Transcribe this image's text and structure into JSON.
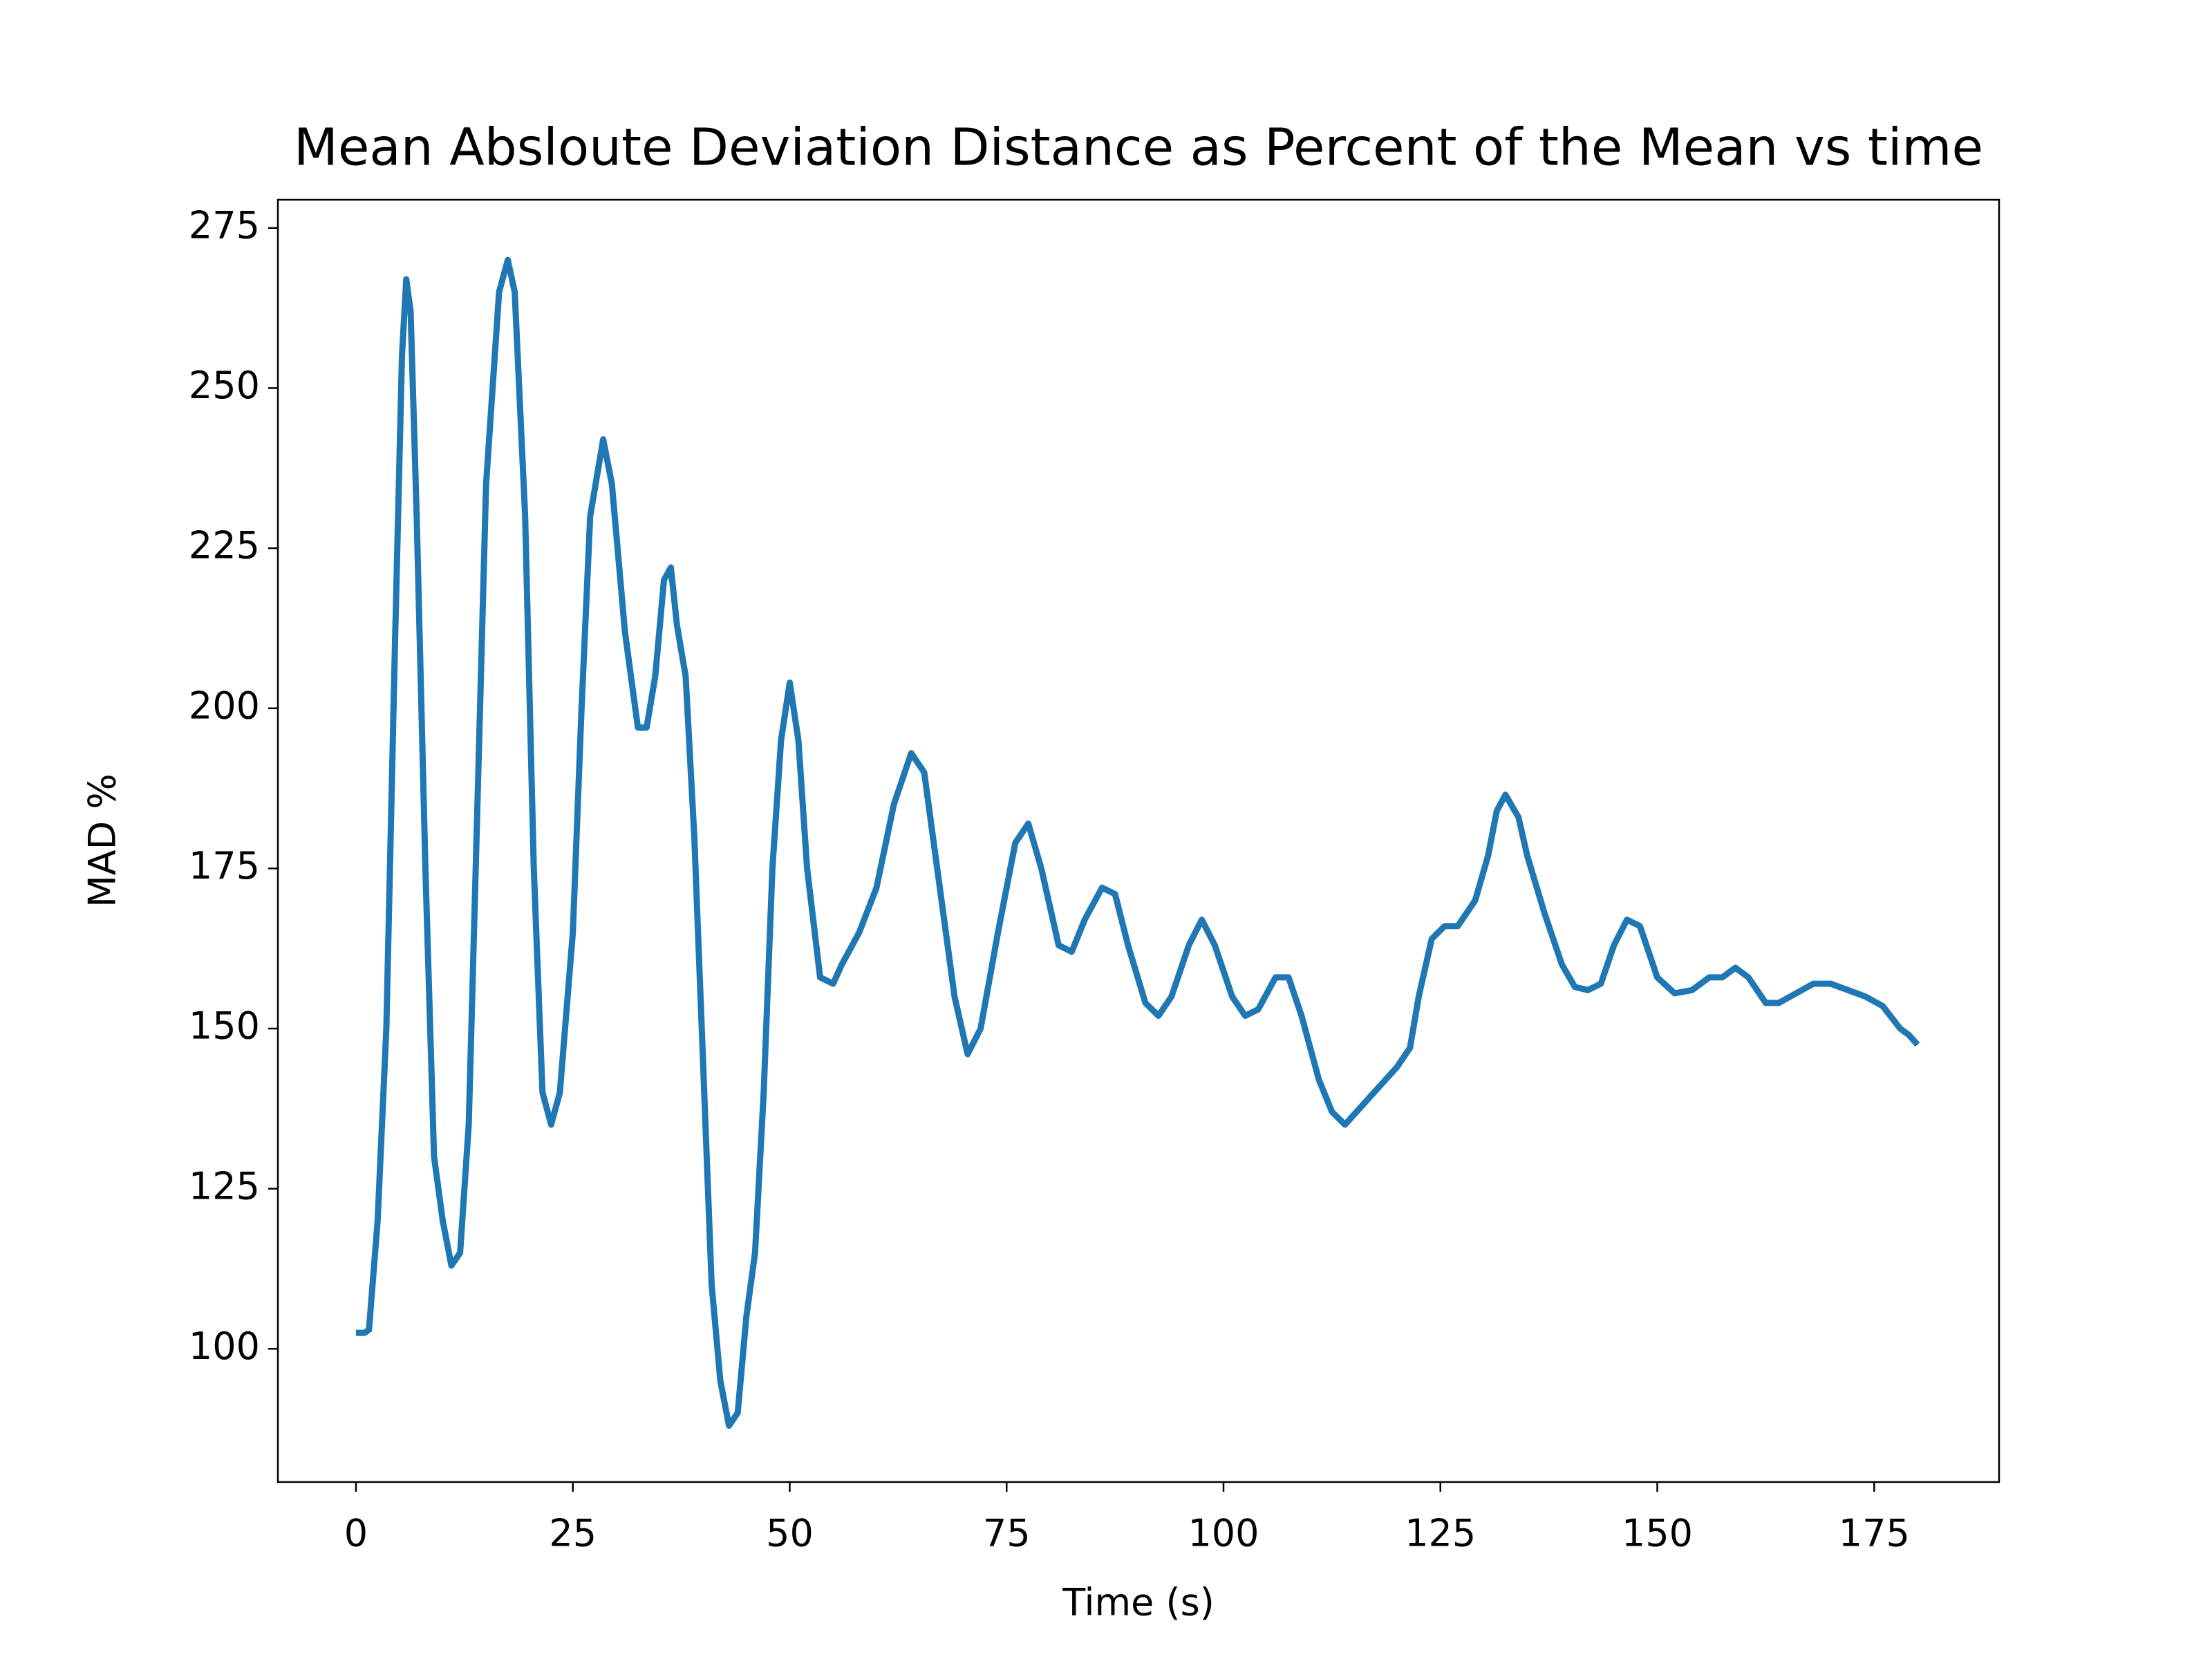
{
  "chart_data": {
    "type": "line",
    "title": "Mean Absloute Deviation Distance as Percent of the Mean vs time",
    "xlabel": "Time (s)",
    "ylabel": "MAD %",
    "x": [
      0,
      1,
      1.5,
      2.5,
      3.5,
      4.5,
      5.3,
      5.8,
      6.3,
      7,
      8,
      9,
      10,
      11,
      12,
      13,
      14,
      15,
      16.5,
      17.5,
      18.3,
      19.5,
      20.5,
      21.5,
      22.5,
      23.5,
      25,
      26,
      27,
      28.5,
      29.5,
      31,
      32.5,
      33.5,
      34.5,
      35.5,
      36.3,
      37,
      38,
      39,
      40,
      41,
      42,
      43,
      44,
      45,
      46,
      47,
      48,
      49,
      50,
      51,
      52,
      53.5,
      55,
      56,
      58,
      60,
      62,
      64,
      65.5,
      67,
      69,
      70.5,
      72,
      74,
      76,
      77.5,
      79,
      81,
      82.5,
      84,
      86,
      87.5,
      89,
      91,
      92.5,
      94,
      96,
      97.5,
      99,
      101,
      102.5,
      104,
      106,
      107.5,
      109,
      111,
      112.5,
      114,
      116,
      118,
      120,
      121.5,
      122.5,
      124,
      125.5,
      127,
      129,
      130.5,
      131.5,
      132.5,
      134,
      135,
      137,
      139,
      140.5,
      142,
      143.5,
      145,
      146.5,
      148,
      150,
      152,
      154,
      156,
      157.5,
      159,
      160.5,
      162.5,
      164,
      166,
      168,
      170,
      172,
      174,
      176,
      178,
      179,
      180
    ],
    "series": [
      {
        "name": "MAD",
        "color": "#1f77b4",
        "values": [
          102.5,
          102.5,
          103,
          120,
          150,
          210,
          255,
          267,
          262,
          230,
          175,
          130,
          120,
          113,
          115,
          135,
          185,
          235,
          265,
          270,
          265,
          230,
          175,
          140,
          135,
          140,
          165,
          200,
          230,
          242,
          235,
          212,
          197,
          197,
          205,
          220,
          222,
          213,
          205,
          180,
          145,
          110,
          95,
          88,
          90,
          105,
          115,
          140,
          175,
          195,
          204,
          195,
          175,
          158,
          157,
          160,
          165,
          172,
          185,
          193,
          190,
          175,
          155,
          146,
          150,
          165,
          179,
          182,
          175,
          163,
          162,
          167,
          172,
          171,
          163,
          154,
          152,
          155,
          163,
          167,
          163,
          155,
          152,
          153,
          158,
          158,
          152,
          142,
          137,
          135,
          138,
          141,
          144,
          147,
          155,
          164,
          166,
          166,
          170,
          177,
          184,
          186.5,
          183,
          177,
          168,
          160,
          156.5,
          156,
          157,
          163,
          167,
          166,
          158,
          155.5,
          156,
          158,
          158,
          159.5,
          158,
          154,
          154,
          155.5,
          157,
          157,
          156,
          155,
          153.5,
          150,
          149,
          147.5
        ]
      }
    ],
    "xlim": [
      -9,
      189.4
    ],
    "ylim": [
      79.2,
      279.4
    ],
    "xticks": [
      0,
      25,
      50,
      75,
      100,
      125,
      150,
      175
    ],
    "yticks": [
      100,
      125,
      150,
      175,
      200,
      225,
      250,
      275
    ]
  }
}
